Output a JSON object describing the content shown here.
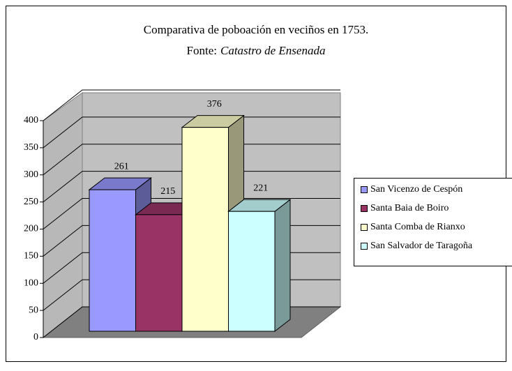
{
  "chart_data": {
    "type": "bar3d",
    "title": "Comparativa de poboación en veciños en 1753.",
    "subtitle": {
      "label": "Fonte:",
      "source": "Catastro de Ensenada"
    },
    "series": [
      {
        "name": "San Vicenzo de Cespón",
        "color": "#9999ff",
        "values": [
          261
        ]
      },
      {
        "name": "Santa Baia de Boiro",
        "color": "#993366",
        "values": [
          215
        ]
      },
      {
        "name": "Santa Comba de Rianxo",
        "color": "#ffffcc",
        "values": [
          376
        ]
      },
      {
        "name": "San Salvador de Taragoña",
        "color": "#ccffff",
        "values": [
          221
        ]
      }
    ],
    "ylim": [
      0,
      400
    ],
    "yticks": [
      0,
      50,
      100,
      150,
      200,
      250,
      300,
      350,
      400
    ],
    "grid": true,
    "legend": "right"
  }
}
